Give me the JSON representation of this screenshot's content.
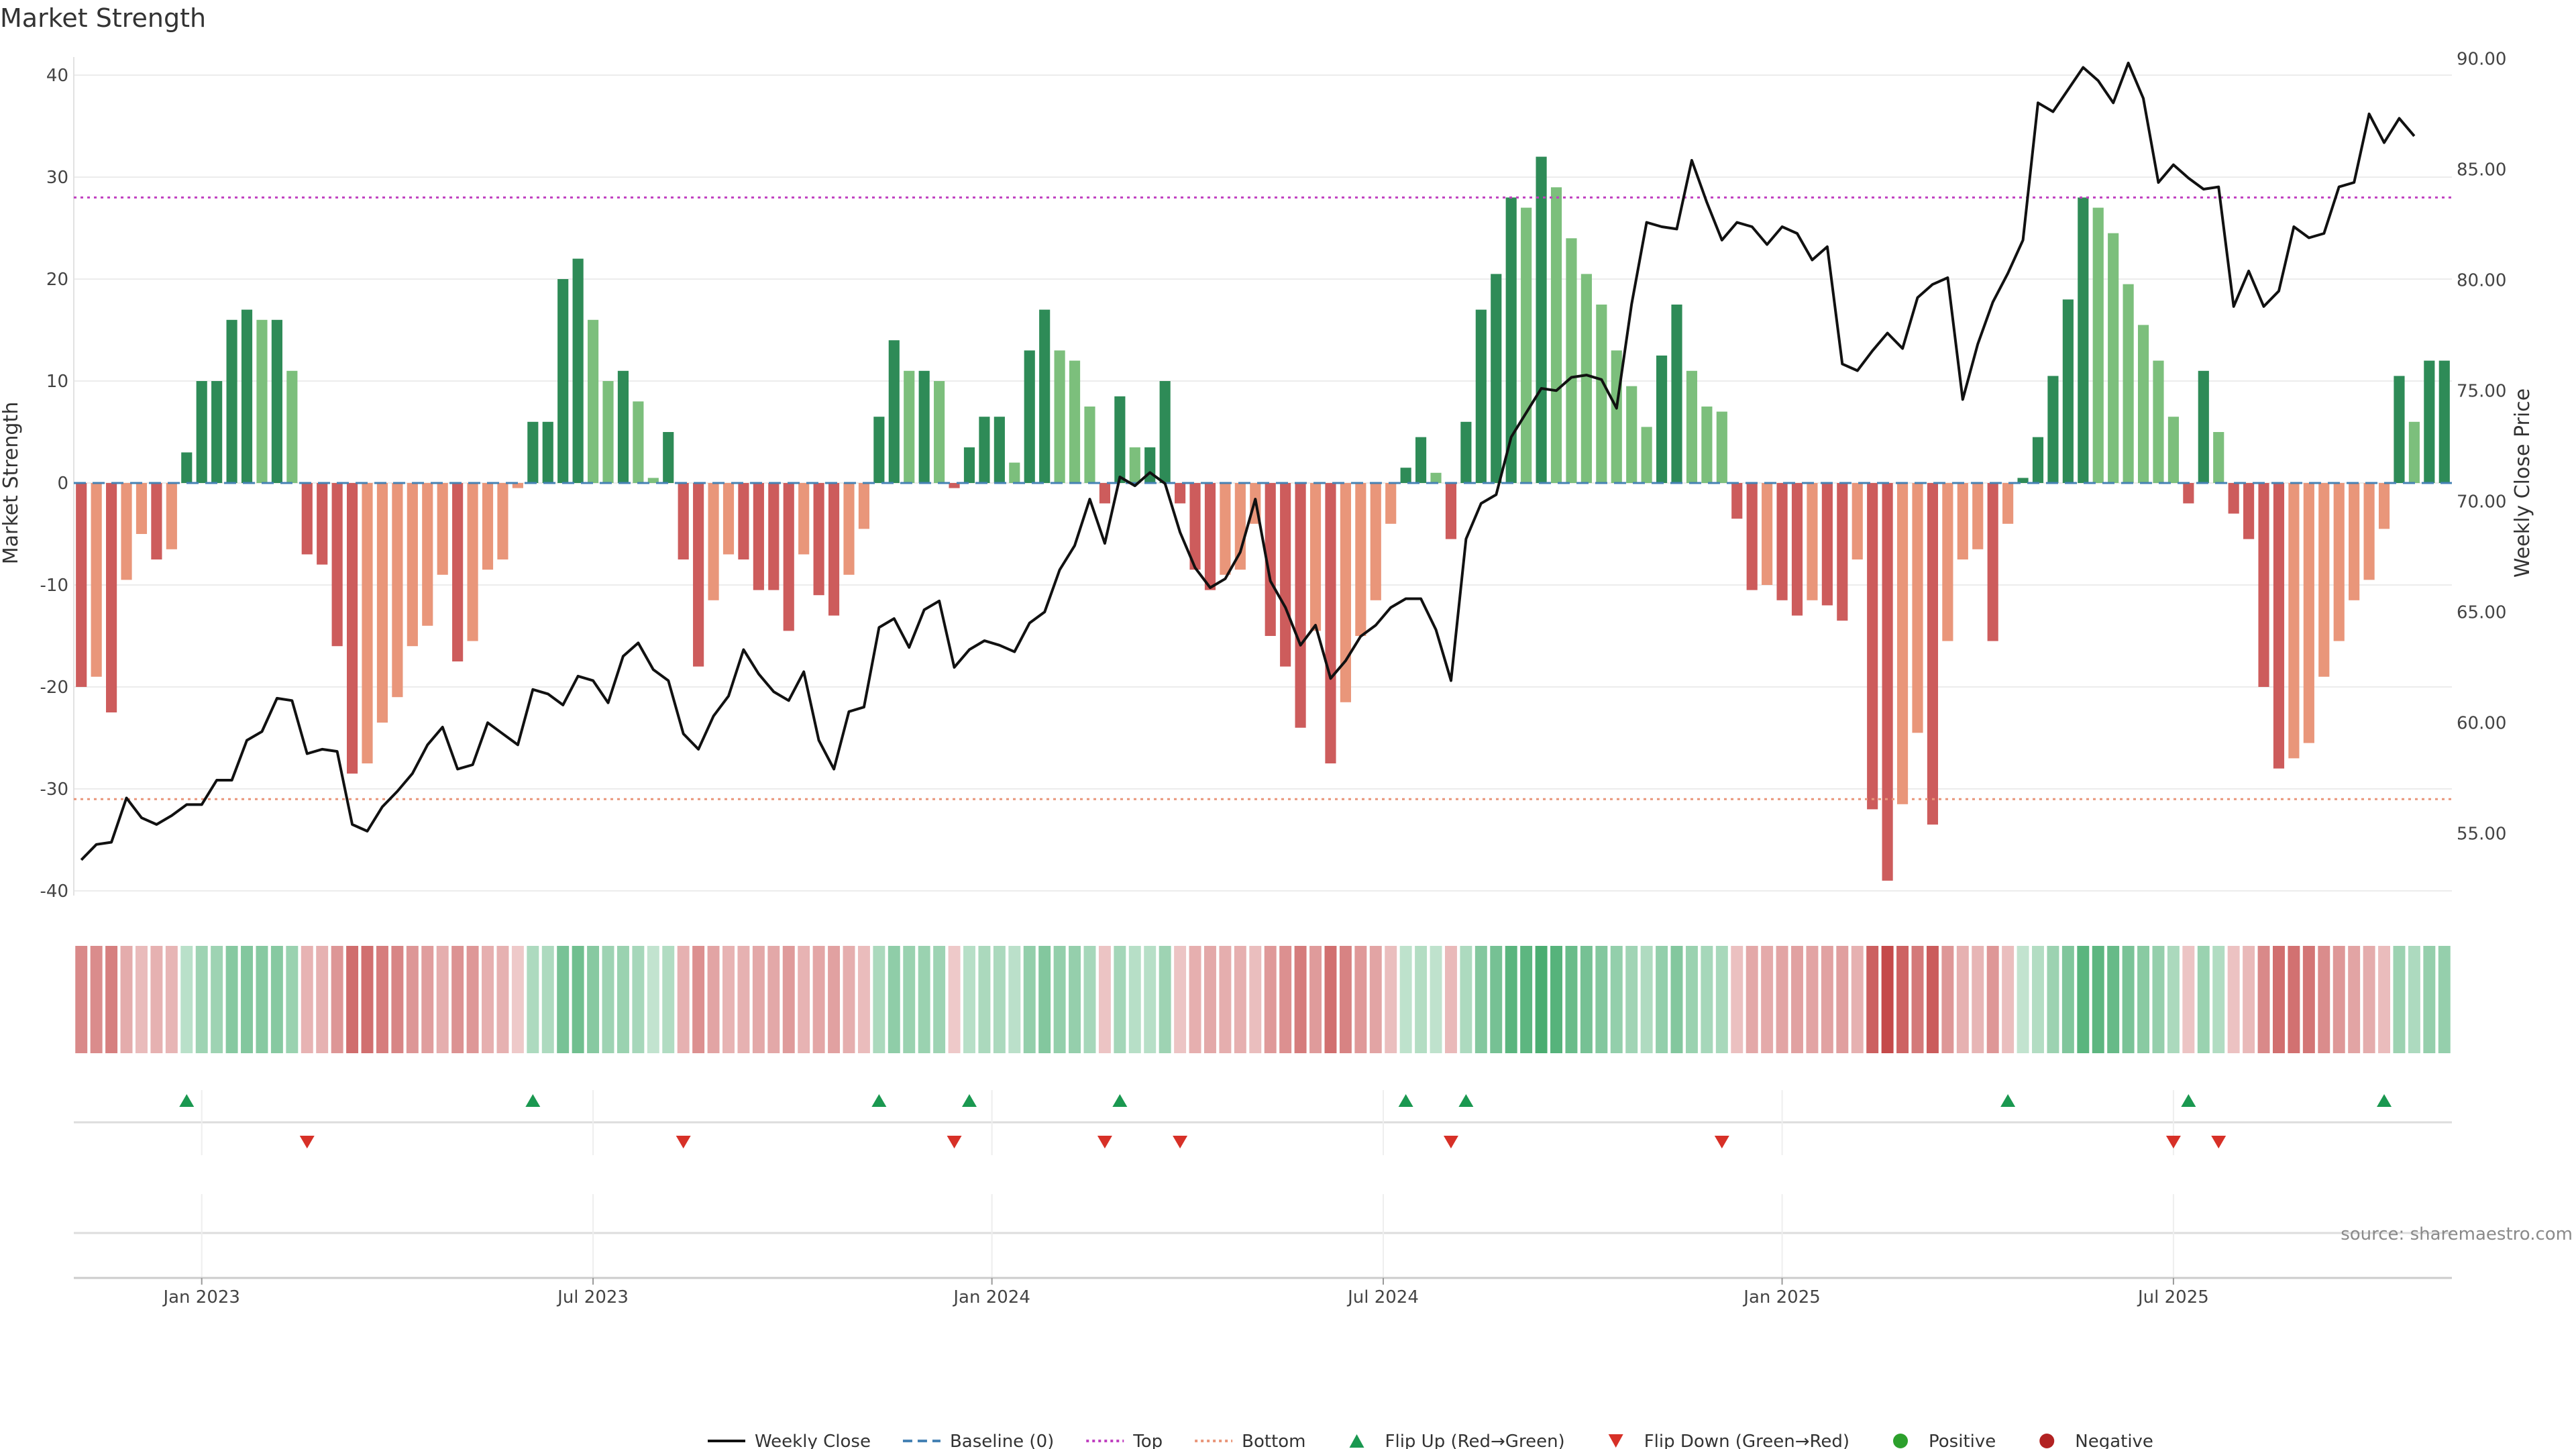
{
  "title": "Market Strength",
  "source_note": "source: sharemaestro.com",
  "colors": {
    "pos_strong": "#2e8b57",
    "pos_weak": "#7cbf7c",
    "neg_strong": "#cd5c5c",
    "neg_weak": "#e9967a",
    "weekly_close": "#111111",
    "baseline": "#4682b4",
    "top": "#c040c0",
    "bottom": "#e9967a",
    "flip_up": "#1a9850",
    "flip_down": "#d73027",
    "positive": "#2ca02c",
    "negative": "#b22222"
  },
  "legend": [
    {
      "label": "Weekly Close",
      "kind": "line-solid",
      "color": "#111111"
    },
    {
      "label": "Baseline (0)",
      "kind": "line-dash",
      "color": "#4682b4"
    },
    {
      "label": "Top",
      "kind": "line-dot",
      "color": "#c040c0"
    },
    {
      "label": "Bottom",
      "kind": "line-dot",
      "color": "#e9967a"
    },
    {
      "label": "Flip Up (Red→Green)",
      "kind": "tri-up",
      "color": "#1a9850"
    },
    {
      "label": "Flip Down (Green→Red)",
      "kind": "tri-down",
      "color": "#d73027"
    },
    {
      "label": "Positive",
      "kind": "dot",
      "color": "#2ca02c"
    },
    {
      "label": "Negative",
      "kind": "dot",
      "color": "#b22222"
    }
  ],
  "chart_data": {
    "type": "bar",
    "xlabel": "",
    "ylabel": "Market Strength",
    "y2label": "Weekly Close Price",
    "ylim": [
      -42,
      42
    ],
    "y2lim": [
      52.25,
      90.75
    ],
    "yticks": [
      40,
      30,
      20,
      10,
      0,
      -10,
      -20,
      -30,
      -40
    ],
    "y2ticks": [
      "90.00",
      "85.00",
      "80.00",
      "75.00",
      "70.00",
      "65.00",
      "60.00",
      "55.00"
    ],
    "y2tick_values": [
      90,
      85,
      80,
      75,
      70,
      65,
      60,
      55
    ],
    "grid": true,
    "legend_position": "bottom-center",
    "x_ticks": [
      {
        "label": "Jan 2023",
        "week": 8.5
      },
      {
        "label": "Jul 2023",
        "week": 34.5
      },
      {
        "label": "Jan 2024",
        "week": 61
      },
      {
        "label": "Jul 2024",
        "week": 87
      },
      {
        "label": "Jan 2025",
        "week": 113.5
      },
      {
        "label": "Jul 2025",
        "week": 139.5
      }
    ],
    "top_level": 28,
    "bottom_level": -31,
    "baseline": 0,
    "strength": [
      -20,
      -19,
      -22.5,
      -9.5,
      -5,
      -7.5,
      -6.5,
      3,
      10,
      10,
      16,
      17,
      16,
      16,
      11,
      -7,
      -8,
      -16,
      -28.5,
      -27.5,
      -23.5,
      -21,
      -16,
      -14,
      -9,
      -17.5,
      -15.5,
      -8.5,
      -7.5,
      -0.5,
      6,
      6,
      20,
      22,
      16,
      10,
      11,
      8,
      0.5,
      5,
      -7.5,
      -18,
      -11.5,
      -7,
      -7.5,
      -10.5,
      -10.5,
      -14.5,
      -7,
      -11,
      -13,
      -9,
      -4.5,
      6.5,
      14,
      11,
      11,
      10,
      -0.5,
      3.5,
      6.5,
      6.5,
      2,
      13,
      17,
      13,
      12,
      7.5,
      -2,
      8.5,
      3.5,
      3.5,
      10,
      -2,
      -8.5,
      -10.5,
      -9,
      -8.5,
      -4,
      -15,
      -18,
      -24,
      -14.5,
      -27.5,
      -21.5,
      -15,
      -11.5,
      -4,
      1.5,
      4.5,
      1,
      -5.5,
      6,
      17,
      20.5,
      28,
      27,
      32,
      29,
      24,
      20.5,
      17.5,
      13,
      9.5,
      5.5,
      12.5,
      17.5,
      11,
      7.5,
      7,
      -3.5,
      -10.5,
      -10,
      -11.5,
      -13,
      -11.5,
      -12,
      -13.5,
      -7.5,
      -32,
      -39,
      -31.5,
      -24.5,
      -33.5,
      -15.5,
      -7.5,
      -6.5,
      -15.5,
      -4,
      0.5,
      4.5,
      10.5,
      18,
      28,
      27,
      24.5,
      19.5,
      15.5,
      12,
      6.5,
      -2,
      11,
      5,
      -3,
      -5.5,
      -20,
      -28,
      -27,
      -25.5,
      -19,
      -15.5,
      -11.5,
      -9.5,
      -4.5,
      10.5,
      6,
      12,
      12
    ],
    "flip_up_weeks": [
      7,
      30,
      53,
      59,
      69,
      88,
      92,
      128,
      140,
      153
    ],
    "flip_down_weeks": [
      15,
      40,
      58,
      68,
      73,
      91,
      109,
      139,
      142
    ],
    "weekly_close": [
      53.8,
      54.5,
      54.6,
      56.6,
      55.7,
      55.4,
      55.8,
      56.3,
      56.3,
      57.4,
      57.4,
      59.2,
      59.6,
      61.1,
      61.0,
      58.6,
      58.8,
      58.7,
      55.4,
      55.1,
      56.2,
      56.9,
      57.7,
      59.0,
      59.8,
      57.9,
      58.1,
      60.0,
      59.5,
      59.0,
      61.5,
      61.3,
      60.8,
      62.1,
      61.9,
      60.9,
      63.0,
      63.6,
      62.4,
      61.9,
      59.5,
      58.8,
      60.3,
      61.2,
      63.3,
      62.2,
      61.4,
      61.0,
      62.3,
      59.2,
      57.9,
      60.5,
      60.7,
      64.3,
      64.7,
      63.4,
      65.1,
      65.5,
      62.5,
      63.3,
      63.7,
      63.5,
      63.2,
      64.5,
      65.0,
      66.9,
      68.0,
      70.1,
      68.1,
      71.1,
      70.7,
      71.3,
      70.8,
      68.6,
      67.0,
      66.1,
      66.5,
      67.7,
      70.1,
      66.4,
      65.2,
      63.5,
      64.4,
      62.0,
      62.8,
      63.9,
      64.4,
      65.2,
      65.6,
      65.6,
      64.2,
      61.9,
      68.3,
      69.9,
      70.3,
      72.9,
      74.0,
      75.1,
      75.0,
      75.6,
      75.7,
      75.5,
      74.2,
      78.9,
      82.6,
      82.4,
      82.3,
      85.4,
      83.5,
      81.8,
      82.6,
      82.4,
      81.6,
      82.4,
      82.1,
      80.9,
      81.5,
      76.2,
      75.9,
      76.8,
      77.6,
      76.9,
      79.2,
      79.8,
      80.1,
      74.6,
      77.1,
      79.0,
      80.3,
      81.8,
      88.0,
      87.6,
      88.6,
      89.6,
      89.0,
      88.0,
      89.8,
      88.2,
      84.4,
      85.2,
      84.6,
      84.1,
      84.2,
      78.8,
      80.4,
      78.8,
      79.5,
      82.4,
      81.9,
      82.1,
      84.2,
      84.4,
      87.5,
      86.2,
      87.3,
      86.5
    ]
  }
}
